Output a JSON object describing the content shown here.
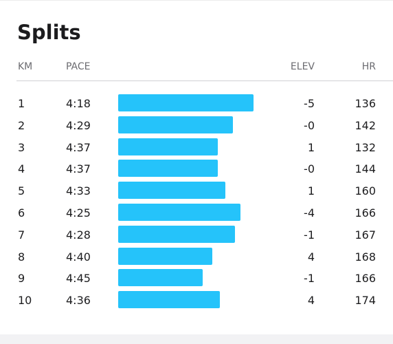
{
  "splits": {
    "title": "Splits",
    "columns": {
      "km": "KM",
      "pace": "PACE",
      "elev": "ELEV",
      "hr": "HR"
    },
    "bar_color": "#25c3fa",
    "rows": [
      {
        "km": "1",
        "pace": "4:18",
        "elev": "-5",
        "hr": "136",
        "pace_seconds": 258
      },
      {
        "km": "2",
        "pace": "4:29",
        "elev": "-0",
        "hr": "142",
        "pace_seconds": 269
      },
      {
        "km": "3",
        "pace": "4:37",
        "elev": "1",
        "hr": "132",
        "pace_seconds": 277
      },
      {
        "km": "4",
        "pace": "4:37",
        "elev": "-0",
        "hr": "144",
        "pace_seconds": 277
      },
      {
        "km": "5",
        "pace": "4:33",
        "elev": "1",
        "hr": "160",
        "pace_seconds": 273
      },
      {
        "km": "6",
        "pace": "4:25",
        "elev": "-4",
        "hr": "166",
        "pace_seconds": 265
      },
      {
        "km": "7",
        "pace": "4:28",
        "elev": "-1",
        "hr": "167",
        "pace_seconds": 268
      },
      {
        "km": "8",
        "pace": "4:40",
        "elev": "4",
        "hr": "168",
        "pace_seconds": 280
      },
      {
        "km": "9",
        "pace": "4:45",
        "elev": "-1",
        "hr": "166",
        "pace_seconds": 285
      },
      {
        "km": "10",
        "pace": "4:36",
        "elev": "4",
        "hr": "174",
        "pace_seconds": 276
      }
    ]
  }
}
